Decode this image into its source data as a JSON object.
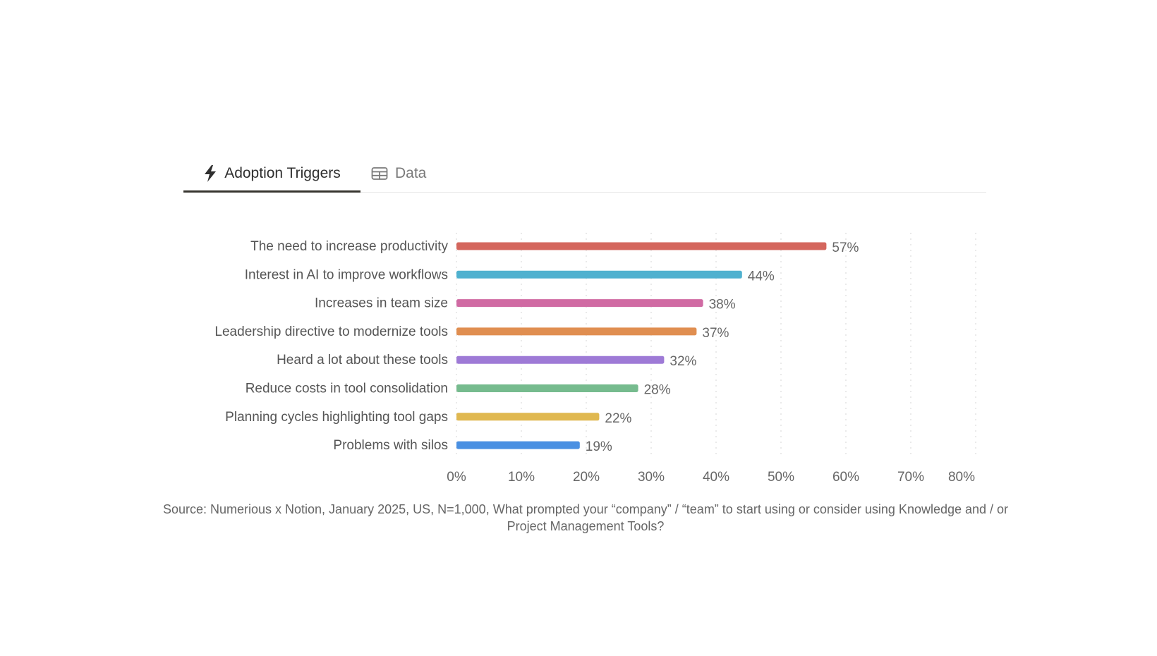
{
  "tabs": [
    {
      "label": "Adoption Triggers",
      "icon": "lightning-bolt-icon",
      "active": true
    },
    {
      "label": "Data",
      "icon": "table-icon",
      "active": false
    }
  ],
  "chart_data": {
    "type": "bar",
    "orientation": "horizontal",
    "categories": [
      "The need to increase productivity",
      "Interest in AI to improve workflows",
      "Increases in team size",
      "Leadership directive to modernize tools",
      "Heard a lot about these tools",
      "Reduce costs in tool consolidation",
      "Planning cycles highlighting tool gaps",
      "Problems with silos"
    ],
    "values": [
      57,
      44,
      38,
      37,
      32,
      28,
      22,
      19
    ],
    "data_labels": [
      "57%",
      "44%",
      "38%",
      "37%",
      "32%",
      "28%",
      "22%",
      "19%"
    ],
    "colors": [
      "#d4665d",
      "#4fb1cf",
      "#d06aa3",
      "#e08e50",
      "#9e7ad6",
      "#76bb8e",
      "#e0b850",
      "#4a90e2"
    ],
    "xlim": [
      0,
      80
    ],
    "xticks": [
      "0%",
      "10%",
      "20%",
      "30%",
      "40%",
      "50%",
      "60%",
      "70%",
      "80%"
    ],
    "grid": true,
    "xlabel": "",
    "ylabel": ""
  },
  "source": "Source: Numerious x Notion, January 2025, US, N=1,000, What prompted your “company” / “team” to start using or consider using Knowledge and / or Project Management Tools?"
}
